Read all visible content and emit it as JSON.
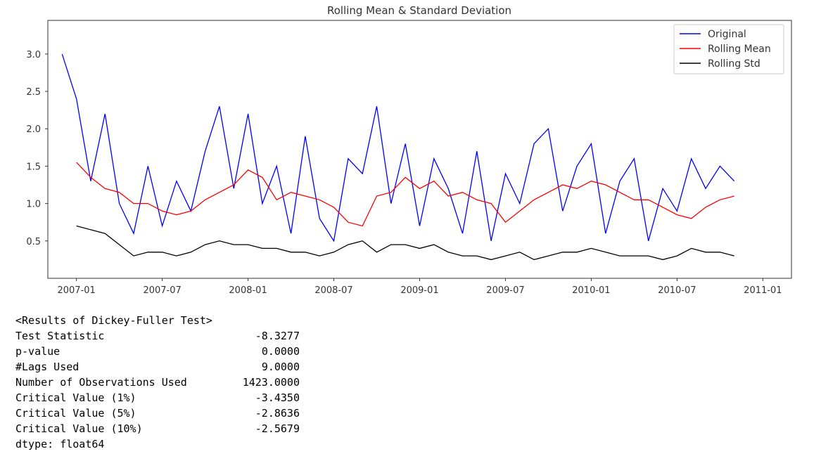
{
  "chart_data": {
    "type": "line",
    "title": "Rolling Mean & Standard Deviation",
    "x": [
      "2006-12",
      "2007-01",
      "2007-02",
      "2007-03",
      "2007-04",
      "2007-05",
      "2007-06",
      "2007-07",
      "2007-08",
      "2007-09",
      "2007-10",
      "2007-11",
      "2007-12",
      "2008-01",
      "2008-02",
      "2008-03",
      "2008-04",
      "2008-05",
      "2008-06",
      "2008-07",
      "2008-08",
      "2008-09",
      "2008-10",
      "2008-11",
      "2008-12",
      "2009-01",
      "2009-02",
      "2009-03",
      "2009-04",
      "2009-05",
      "2009-06",
      "2009-07",
      "2009-08",
      "2009-09",
      "2009-10",
      "2009-11",
      "2009-12",
      "2010-01",
      "2010-02",
      "2010-03",
      "2010-04",
      "2010-05",
      "2010-06",
      "2010-07",
      "2010-08",
      "2010-09",
      "2010-10",
      "2010-11"
    ],
    "series": [
      {
        "name": "Original",
        "color": "#0000ff",
        "values": [
          3.0,
          2.4,
          1.3,
          2.2,
          1.0,
          0.6,
          1.5,
          0.7,
          1.3,
          0.9,
          1.7,
          2.3,
          1.2,
          2.2,
          1.0,
          1.5,
          0.6,
          1.9,
          0.8,
          0.5,
          1.6,
          1.4,
          2.3,
          1.0,
          1.8,
          0.7,
          1.6,
          1.2,
          0.6,
          1.7,
          0.5,
          1.4,
          1.0,
          1.8,
          2.0,
          0.9,
          1.5,
          1.8,
          0.6,
          1.3,
          1.6,
          0.5,
          1.2,
          0.9,
          1.6,
          1.2,
          1.5,
          1.3
        ]
      },
      {
        "name": "Rolling Mean",
        "color": "#ff0000",
        "values": [
          null,
          1.55,
          1.35,
          1.2,
          1.15,
          1.0,
          1.0,
          0.9,
          0.85,
          0.9,
          1.05,
          1.15,
          1.25,
          1.45,
          1.35,
          1.05,
          1.15,
          1.1,
          1.05,
          0.95,
          0.75,
          0.7,
          1.1,
          1.15,
          1.35,
          1.2,
          1.3,
          1.1,
          1.15,
          1.05,
          1.0,
          0.75,
          0.9,
          1.05,
          1.15,
          1.25,
          1.2,
          1.3,
          1.25,
          1.15,
          1.05,
          1.05,
          0.95,
          0.85,
          0.8,
          0.95,
          1.05,
          1.1
        ]
      },
      {
        "name": "Rolling Std",
        "color": "#000000",
        "values": [
          null,
          0.7,
          0.65,
          0.6,
          0.45,
          0.3,
          0.35,
          0.35,
          0.3,
          0.35,
          0.45,
          0.5,
          0.45,
          0.45,
          0.4,
          0.4,
          0.35,
          0.35,
          0.3,
          0.35,
          0.45,
          0.5,
          0.35,
          0.45,
          0.45,
          0.4,
          0.45,
          0.35,
          0.3,
          0.3,
          0.25,
          0.3,
          0.35,
          0.25,
          0.3,
          0.35,
          0.35,
          0.4,
          0.35,
          0.3,
          0.3,
          0.3,
          0.25,
          0.3,
          0.4,
          0.35,
          0.35,
          0.3
        ]
      }
    ],
    "xlim": [
      "2006-11",
      "2011-03"
    ],
    "xticks": [
      "2007-01",
      "2007-07",
      "2008-01",
      "2008-07",
      "2009-01",
      "2009-07",
      "2010-01",
      "2010-07",
      "2011-01"
    ],
    "ylim": [
      0,
      3.45
    ],
    "yticks": [
      0.5,
      {
        "value": 1,
        "label": "1.0"
      },
      1.5,
      {
        "value": 2,
        "label": "2.0"
      },
      2.5,
      {
        "value": 3,
        "label": "3.0"
      }
    ],
    "legend": "upper right",
    "grid": false
  },
  "output": {
    "header": "<Results of Dickey-Fuller Test>",
    "rows": [
      [
        "Test Statistic",
        "-8.3277"
      ],
      [
        "p-value",
        "0.0000"
      ],
      [
        "#Lags Used",
        "9.0000"
      ],
      [
        "Number of Observations Used",
        "1423.0000"
      ],
      [
        "Critical Value (1%)",
        "-3.4350"
      ],
      [
        "Critical Value (5%)",
        "-2.8636"
      ],
      [
        "Critical Value (10%)",
        "-2.5679"
      ]
    ],
    "footer": "dtype: float64"
  }
}
